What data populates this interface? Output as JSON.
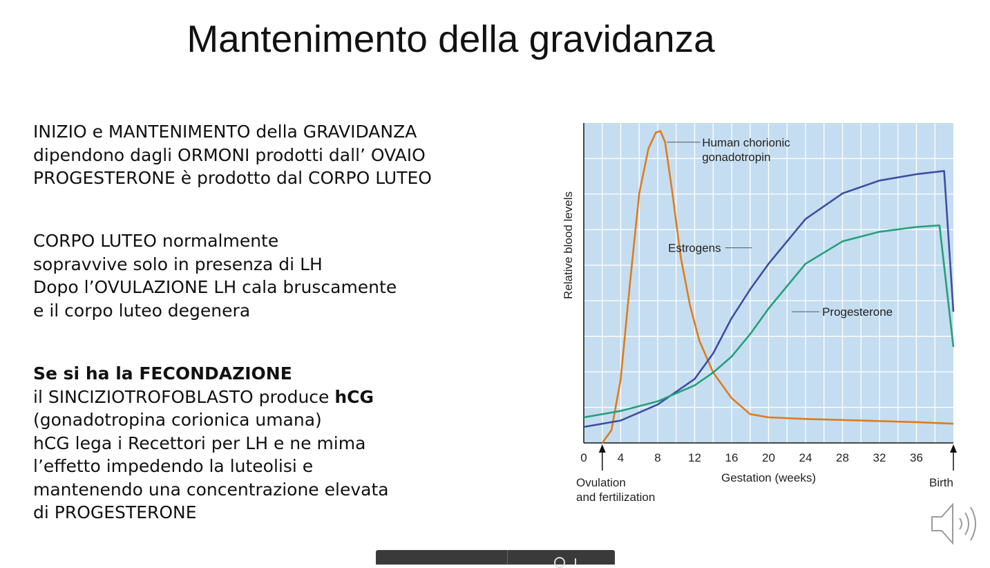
{
  "slide": {
    "title": "Mantenimento della gravidanza",
    "para1": [
      "INIZIO e MANTENIMENTO della GRAVIDANZA",
      "dipendono dagli ORMONI prodotti dall’ OVAIO",
      "PROGESTERONE è prodotto dal CORPO LUTEO"
    ],
    "para2": [
      "CORPO LUTEO normalmente",
      "sopravvive solo in presenza di LH",
      "Dopo l’OVULAZIONE LH cala bruscamente",
      "e il corpo luteo degenera"
    ],
    "para3": {
      "heading": "Se si ha la FECONDAZIONE",
      "line1_prefix": "il SINCIZIOTROFOBLASTO produce ",
      "line1_bold": "hCG",
      "lines": [
        "(gonadotropina corionica umana)",
        "hCG lega i Recettori per LH e ne mima",
        "l’effetto impedendo la luteolisi e",
        "mantenendo una concentrazione elevata",
        "di PROGESTERONE"
      ]
    }
  },
  "chart_data": {
    "type": "line",
    "xlabel": "Gestation (weeks)",
    "ylabel": "Relative blood levels",
    "xlim": [
      0,
      40
    ],
    "ylim": [
      0,
      100
    ],
    "xticks": [
      0,
      4,
      8,
      12,
      16,
      20,
      24,
      28,
      32,
      36
    ],
    "grid": true,
    "background": "#c5ddf0",
    "annotations": [
      {
        "text": "Ovulation",
        "x": 2
      },
      {
        "text": "and fertilization",
        "x": 2
      },
      {
        "text": "Birth",
        "x": 40
      }
    ],
    "series": [
      {
        "name": "Human chorionic gonadotropin",
        "label_lines": [
          "Human chorionic",
          "gonadotropin"
        ],
        "color": "#e07b1a",
        "x": [
          2,
          3,
          4,
          5,
          6,
          7,
          7.8,
          8.3,
          8.8,
          9.5,
          10.5,
          11.5,
          12.5,
          14,
          16,
          18,
          20,
          24,
          30,
          36,
          40
        ],
        "y": [
          0,
          4,
          20,
          50,
          78,
          92,
          97,
          97.5,
          94,
          80,
          58,
          43,
          32,
          22,
          14,
          9,
          8,
          7.5,
          7,
          6.5,
          6
        ]
      },
      {
        "name": "Estrogens",
        "label_lines": [
          "Estrogens"
        ],
        "color": "#3c4ea0",
        "x": [
          0,
          4,
          8,
          12,
          14,
          16,
          18,
          20,
          24,
          28,
          32,
          36,
          39,
          40
        ],
        "y": [
          5,
          7,
          12,
          20,
          28,
          39,
          48,
          56,
          70,
          78,
          82,
          84,
          85,
          41
        ]
      },
      {
        "name": "Progesterone",
        "label_lines": [
          "Progesterone"
        ],
        "color": "#22a07a",
        "x": [
          0,
          4,
          8,
          12,
          14,
          16,
          18,
          20,
          24,
          28,
          32,
          36,
          38.5,
          40
        ],
        "y": [
          8,
          10,
          13,
          18,
          22,
          27,
          34,
          42,
          56,
          63,
          66,
          67.5,
          68,
          30
        ]
      }
    ]
  },
  "colors": {
    "text": "#111111",
    "toolbar": "#3a3a3a"
  },
  "icons": {
    "speaker": "speaker-icon"
  }
}
